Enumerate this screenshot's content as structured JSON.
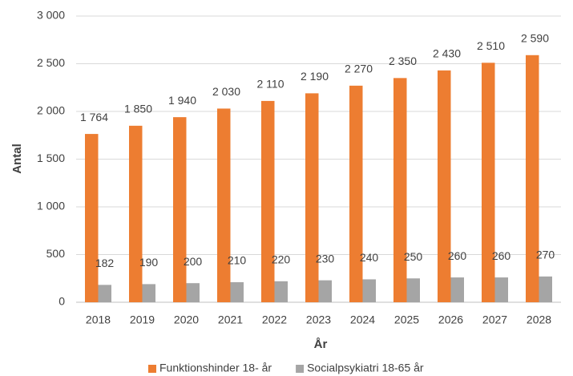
{
  "chart_data": {
    "type": "bar",
    "ylabel": "Antal",
    "xlabel": "År",
    "categories": [
      "2018",
      "2019",
      "2020",
      "2021",
      "2022",
      "2023",
      "2024",
      "2025",
      "2026",
      "2027",
      "2028"
    ],
    "series": [
      {
        "name": "Funktionshinder 18- år",
        "color": "#ed7d31",
        "values": [
          1764,
          1850,
          1940,
          2030,
          2110,
          2190,
          2270,
          2350,
          2430,
          2510,
          2590
        ],
        "value_labels": [
          "1 764",
          "1 850",
          "1 940",
          "2 030",
          "2 110",
          "2 190",
          "2 270",
          "2 350",
          "2 430",
          "2 510",
          "2 590"
        ]
      },
      {
        "name": "Socialpsykiatri 18-65 år",
        "color": "#a5a5a5",
        "values": [
          182,
          190,
          200,
          210,
          220,
          230,
          240,
          250,
          260,
          260,
          270
        ]
      }
    ],
    "ylim": [
      0,
      3000
    ],
    "yticks": [
      0,
      500,
      {
        "value": 1000,
        "label": "1 000"
      },
      {
        "value": 1500,
        "label": "1 500"
      },
      {
        "value": 2000,
        "label": "2 000"
      },
      {
        "value": 2500,
        "label": "2 500"
      },
      {
        "value": 3000,
        "label": "3 000"
      }
    ],
    "grid": true,
    "legend": "bottom"
  }
}
